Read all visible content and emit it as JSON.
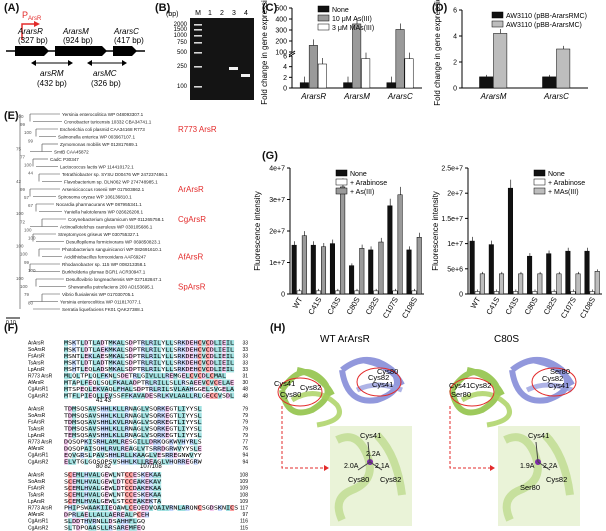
{
  "panels": {
    "A": {
      "label": "(A)",
      "promoter": "P",
      "promoter_sub": "ArsR",
      "genes": [
        {
          "name": "ArarsR",
          "size": "(327 bp)"
        },
        {
          "name": "ArarsM",
          "size": "(924 bp)"
        },
        {
          "name": "ArarsC",
          "size": "(417 bp)"
        }
      ],
      "amplicons": [
        {
          "name": "arsRM",
          "size": "(432 bp)"
        },
        {
          "name": "arsMC",
          "size": "(326 bp)"
        }
      ]
    },
    "B": {
      "label": "(B)",
      "unit": "(bp)",
      "lanes": [
        "M",
        "1",
        "2",
        "3",
        "4"
      ],
      "ladder": [
        "2000",
        "1500",
        "1000",
        "750",
        "500",
        "250",
        "100"
      ]
    },
    "C": {
      "label": "(C)"
    },
    "D": {
      "label": "(D)"
    },
    "E": {
      "label": "(E)",
      "scale": "0.10",
      "highlight_labels": [
        {
          "text": "R773 ArsR",
          "color": "#e32b2b"
        },
        {
          "text": "ArArsR",
          "color": "#e32b2b"
        },
        {
          "text": "CgArsR",
          "color": "#e32b2b"
        },
        {
          "text": "AfArsR",
          "color": "#e32b2b"
        },
        {
          "text": "SpArsR",
          "color": "#e32b2b"
        }
      ],
      "taxa": [
        "Yersinia enterocolitica WP 048093307.1",
        "Cronobacter turicensis 10332 CBA34741.1",
        "Escherichia coli plasmid CAA34168 R773",
        "Salmonella enterica WP 003967107.1",
        "Zymomonas mobilis WP 012817689.1",
        "SmtB CAA45872",
        "CadC P30347",
        "Lactococcus lactis WP 114410172.1",
        "Tetrathiobacter sp. SYSU D00476 WP 247237486.1",
        "Flavobacterium sp. DLN062 WP 274748985.1",
        "Arsenicicoccus rosenii WP 017503862.1",
        "Spirosoma oryzae WP 106136810.1",
        "Nocardia pharmacurans WP 087955341.1",
        "Yaniella halotolerans WP 026626208.1",
        "Corynebacterium glutamicum WP 011265758.1",
        "Actinoallotelchus caeruleus WP 030105686.1",
        "Streptomyces griseus WP 030755327.1",
        "Desulfopilema formicivorans WP 069850823.1",
        "Photobacterium sanguinicancri WP 082691610.1",
        "Acidithiobacillus ferrooxidans AAF69247",
        "Rhodanobacter sp. 115 WP 008213358.1",
        "Burkholderia glumae BGR1 ACR30947.1",
        "Desulfovibrio longreachensis WP 027182847.1",
        "Shewanella putrefaciens 200 AD153695.1",
        "Vibrio fluvialensis WP 017030705.1",
        "Yersinia enterocolitica WP 011817077.1",
        "Serratia liquefaciens FK01 QAK27388.1"
      ],
      "bootstrap": [
        "100",
        "99",
        "100",
        "99",
        "75",
        "77",
        "100",
        "44",
        "42",
        "99",
        "57",
        "67",
        "100",
        "72",
        "100",
        "100",
        "100",
        "100",
        "99",
        "100",
        "100",
        "100",
        "79",
        "80"
      ]
    },
    "F": {
      "label": "(F)",
      "blocks": [
        {
          "rows": [
            {
              "name": "ArArsR",
              "seq": "MSKTLDTLADTMKALSDPTRLRILYLLSRKDEHCVCDLIEIL",
              "end": "33"
            },
            {
              "name": "SoArsR",
              "seq": "MSKTLDTLAEKMKALSDPTRLRILYLLSRKDEHCVCDLIEIL",
              "end": "33"
            },
            {
              "name": "FsArsR",
              "seq": "MSNTLEKLAESMKALSDPTRLRILYLLSRKDEHCVCDLIEIL",
              "end": "33"
            },
            {
              "name": "TsArsR",
              "seq": "MSKTLDTLADTMKALSDPTRLRILYLLSRKDEHCVCDLIEIL",
              "end": "33"
            },
            {
              "name": "LpArsR",
              "seq": "MSHTLEQLADSMKALSDPTRLRILYLLSRKDEHCVCDLIEIL",
              "end": "33"
            },
            {
              "name": "R773 ArsR",
              "seq": "MLQLTPLQLFKNLSDETRLGIVLLLREMGELCVCDLCMAL",
              "end": "31"
            },
            {
              "name": "AfArsR",
              "seq": "MTAPLFEQLSQLFKALADPTRLRILLSLLRSAEEVCVCELAE",
              "end": "30"
            },
            {
              "name": "CgArsR1",
              "seq": "MTSPEQLEKVAQLFHALSDPTRLRILSVLAAHGGELSVGELA",
              "end": "48"
            },
            {
              "name": "CgArsR2",
              "seq": "MTFLPIEQLLEVSSFFKAVADESRLKVLAALLRLGECCVSDL",
              "end": "48"
            }
          ]
        },
        {
          "marker": "41 43",
          "rows": [
            {
              "name": "ArArsR",
              "seq": "TDMSQSAVSHHLKLLRNAGLVSQRKEGTLIYYSL",
              "end": "79"
            },
            {
              "name": "SoArsR",
              "seq": "TDMSQSAVSHHLKLLRNAGLVSQRKEGTLIYYSL",
              "end": "79"
            },
            {
              "name": "FsArsR",
              "seq": "TDMSQSAVSHHLKVLRNAGLVSQRKEGTLIYYSL",
              "end": "79"
            },
            {
              "name": "TsArsR",
              "seq": "TDMSQSAVSHHLKLLRNAGLVSQRKEGTLIYYSL",
              "end": "79"
            },
            {
              "name": "LpArsR",
              "seq": "TEMSQSAVSHHLKLLRNAGLVSQRKEGTLIYYSL",
              "end": "79"
            },
            {
              "name": "R773 ArsR",
              "seq": "DQSQPKISRHLAMLRESGILLDRKQGKWVHYRLS",
              "end": "77"
            },
            {
              "name": "AfArsR",
              "seq": "DQSQPAISQHLRVLREAGLVTSRRDGRWVYYSLE",
              "end": "76"
            },
            {
              "name": "CgArsR1",
              "seq": "EQVGRSLPAVSHHLRLLKAAGLVESRREGNWVYY",
              "end": "94"
            },
            {
              "name": "CgArsR2",
              "seq": "ELVTGLGQSQPSVSHHLKLLREAGLVHQRREGRW",
              "end": "94"
            }
          ]
        },
        {
          "marker": "80 82",
          "marker2": "107/108",
          "rows": [
            {
              "name": "ArArsR",
              "seq": "SCEMLHVALGEWLNTCCESKEKAA",
              "end": "108"
            },
            {
              "name": "SoArsR",
              "seq": "SCEMLHVALGEWLDTCCEAKEKAV",
              "end": "109"
            },
            {
              "name": "FsArsR",
              "seq": "SCEMLHVALGEWLDTCCDAKEKAA",
              "end": "109"
            },
            {
              "name": "TsArsR",
              "seq": "SCEMLHVALGEWLNTCCESKEKAA",
              "end": "108"
            },
            {
              "name": "LpArsR",
              "seq": "SCEMLHVALGEWLSTCCEAKEKTA",
              "end": "109"
            },
            {
              "name": "R773 ArsR",
              "seq": "PHIPSWAAKIIEQAWLCEQEDVQAIVRNLARQNCSGDSKNICS",
              "end": "117"
            },
            {
              "name": "AfArsR",
              "seq": "DPRLAELLALLAEREALPCEH",
              "end": "97"
            },
            {
              "name": "CgArsR1",
              "seq": "SLDDTHVRNLLDSAHHFLGQ",
              "end": "116"
            },
            {
              "name": "CgArsR2",
              "seq": "SLTDPQAASLLRSAREMFEQ",
              "end": "115"
            }
          ]
        }
      ]
    },
    "G": {
      "label": "(G)"
    },
    "H": {
      "label": "(H)",
      "titles": [
        "WT ArArsR",
        "C80S"
      ],
      "wt_labels": [
        "Cys41",
        "Cys82",
        "Cys80",
        "Cys82",
        "Cys80",
        "Cys41"
      ],
      "mut_labels": [
        "Cys41",
        "Cys82",
        "Ser80",
        "Ser80",
        "Cys82",
        "Cys41"
      ],
      "wt_zoom": [
        "Cys41",
        "2.2A",
        "2.0A",
        "2.1A",
        "Cys80",
        "Cys82"
      ],
      "mut_zoom": [
        "Cys41",
        "1.9A",
        "2.2A",
        "Ser80",
        "Cys82"
      ]
    }
  },
  "chart_data": [
    {
      "panel": "C",
      "type": "bar",
      "ylabel": "Fold change in gene expression",
      "categories": [
        "ArarsR",
        "ArarsM",
        "ArarsC"
      ],
      "y_ticks_lower": [
        "0",
        "2",
        "4",
        "6"
      ],
      "y_ticks_upper": [
        "100",
        "200",
        "300",
        "400",
        "500"
      ],
      "axis_break": [
        6,
        100
      ],
      "series": [
        {
          "name": "None",
          "color": "#111111",
          "values": [
            1,
            1,
            1
          ]
        },
        {
          "name": "10 μM As(III)",
          "color": "#9a9a9a",
          "values": [
            160,
            355,
            305
          ]
        },
        {
          "name": "3 μM MAs(III)",
          "color": "#ffffff",
          "values": [
            4.5,
            5.5,
            5.5
          ]
        }
      ]
    },
    {
      "panel": "D",
      "type": "bar",
      "ylabel": "Fold change in gene expression",
      "categories": [
        "ArarsM",
        "ArarsC"
      ],
      "yticks": [
        "0",
        "2",
        "4",
        "6"
      ],
      "ylim": [
        0,
        7
      ],
      "series": [
        {
          "name": "AW3110 (pBB-ArarsRMC)",
          "color": "#111111",
          "values": [
            1.0,
            1.0
          ]
        },
        {
          "name": "AW3110 (pBB-ArarsMC)",
          "color": "#bdbdbd",
          "values": [
            4.9,
            3.5
          ]
        }
      ]
    },
    {
      "panel": "G-left",
      "type": "bar",
      "ylabel": "Fluorescence intensity",
      "categories": [
        "WT",
        "C41S",
        "C43S",
        "C80S",
        "C82S",
        "C107S",
        "C108S"
      ],
      "yticks": [
        "0",
        "1e+7",
        "2e+7",
        "3e+7",
        "4e+7"
      ],
      "ylim": [
        0,
        40000000
      ],
      "series": [
        {
          "name": "None",
          "color": "#111111",
          "values": [
            15500000,
            15500000,
            16000000,
            9000000,
            14000000,
            28000000,
            14000000
          ]
        },
        {
          "name": "+ Arabinose",
          "color": "#ffffff",
          "values": [
            1000000,
            1000000,
            1000000,
            1000000,
            1000000,
            1000000,
            1000000
          ]
        },
        {
          "name": "+ As(III)",
          "color": "#9a9a9a",
          "values": [
            18500000,
            15000000,
            34000000,
            14500000,
            16500000,
            31500000,
            18000000
          ]
        }
      ]
    },
    {
      "panel": "G-right",
      "type": "bar",
      "ylabel": "Fluorescence intensity",
      "categories": [
        "WT",
        "C41S",
        "C43S",
        "C80S",
        "C82S",
        "C107S",
        "C108S"
      ],
      "yticks": [
        "0",
        "5e+6",
        "1e+7",
        "1.5e+7",
        "2e+7",
        "2.5e+7"
      ],
      "ylim": [
        0,
        25000000
      ],
      "series": [
        {
          "name": "None",
          "color": "#111111",
          "values": [
            10500000,
            9800000,
            21000000,
            7500000,
            8000000,
            8500000,
            8500000
          ]
        },
        {
          "name": "+ Arabinose",
          "color": "#ffffff",
          "values": [
            500000,
            500000,
            500000,
            500000,
            500000,
            500000,
            500000
          ]
        },
        {
          "name": "+ MAs(III)",
          "color": "#bdbdbd",
          "values": [
            4000000,
            4000000,
            4000000,
            4000000,
            4000000,
            4000000,
            4500000
          ]
        }
      ]
    }
  ]
}
